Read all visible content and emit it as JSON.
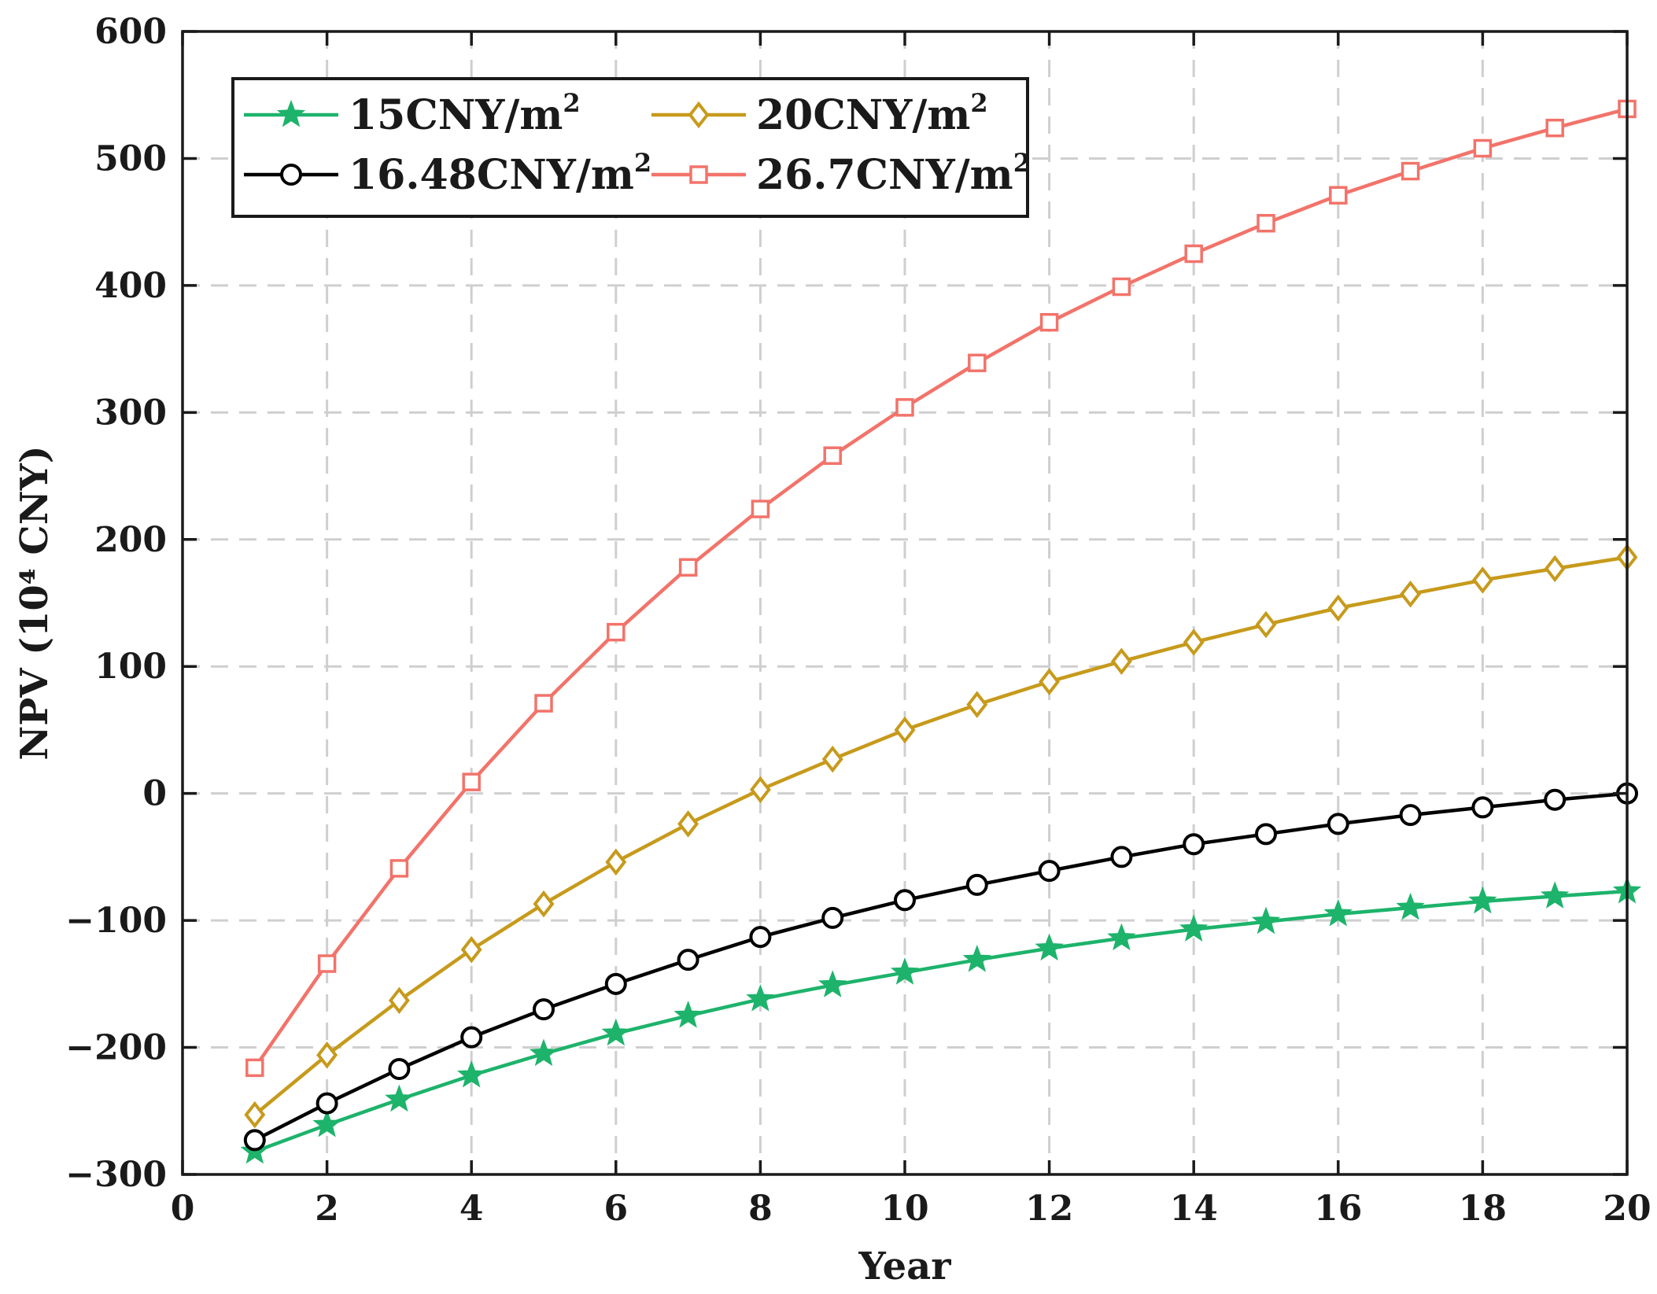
{
  "chart_data": {
    "type": "line",
    "xlabel": "Year",
    "ylabel": "NPV (10⁴ CNY)",
    "xlim": [
      0,
      20
    ],
    "ylim": [
      -300,
      600
    ],
    "xticks": [
      0,
      2,
      4,
      6,
      8,
      10,
      12,
      14,
      16,
      18,
      20
    ],
    "xtick_labels": [
      "0",
      "2",
      "4",
      "6",
      "8",
      "10",
      "12",
      "14",
      "16",
      "18",
      "20"
    ],
    "yticks": [
      -300,
      -200,
      -100,
      0,
      100,
      200,
      300,
      400,
      500,
      600
    ],
    "ytick_labels": [
      "−300",
      "−200",
      "−100",
      "0",
      "100",
      "200",
      "300",
      "400",
      "500",
      "600"
    ],
    "grid": true,
    "legend_position": "top-left",
    "x": [
      1,
      2,
      3,
      4,
      5,
      6,
      7,
      8,
      9,
      10,
      11,
      12,
      13,
      14,
      15,
      16,
      17,
      18,
      19,
      20
    ],
    "series": [
      {
        "name": "15CNY/m²",
        "marker": "star",
        "color": "#1db36b",
        "values": [
          -282,
          -261,
          -241,
          -222,
          -205,
          -189,
          -175,
          -162,
          -151,
          -141,
          -131,
          -122,
          -114,
          -107,
          -101,
          -95,
          -90,
          -85,
          -81,
          -77
        ]
      },
      {
        "name": "16.48CNY/m²",
        "marker": "circle",
        "color": "#000000",
        "values": [
          -273,
          -244,
          -217,
          -192,
          -170,
          -150,
          -131,
          -113,
          -98,
          -84,
          -72,
          -61,
          -50,
          -40,
          -32,
          -24,
          -17,
          -11,
          -5,
          0
        ]
      },
      {
        "name": "20CNY/m²",
        "marker": "diamond",
        "color": "#c79a1b",
        "values": [
          -253,
          -206,
          -163,
          -123,
          -87,
          -54,
          -24,
          3,
          27,
          50,
          70,
          88,
          104,
          119,
          133,
          146,
          157,
          168,
          177,
          186
        ]
      },
      {
        "name": "26.7CNY/m²",
        "marker": "square",
        "color": "#f2736a",
        "values": [
          -216,
          -134,
          -59,
          9,
          71,
          127,
          178,
          224,
          266,
          304,
          339,
          371,
          399,
          425,
          449,
          471,
          490,
          508,
          524,
          539
        ]
      }
    ]
  }
}
